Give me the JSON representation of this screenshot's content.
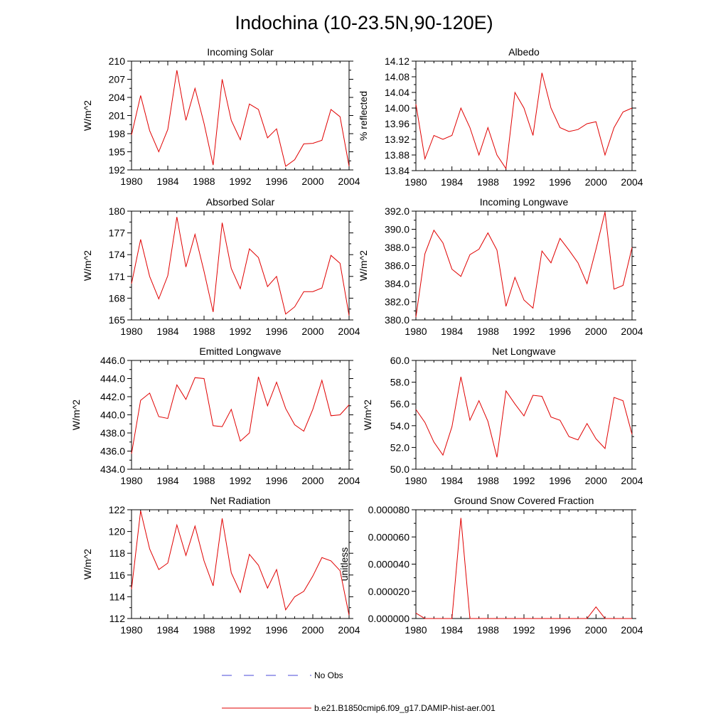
{
  "title": "Indochina (10-23.5N,90-120E)",
  "legend": {
    "placement": "bottom-center",
    "entries": [
      {
        "label": "No Obs",
        "color": "#4a4ad8",
        "style": "dashed"
      },
      {
        "label": "b.e21.B1850cmip6.f09_g17.DAMIP-hist-aer.001",
        "color": "#e00000",
        "style": "solid"
      }
    ]
  },
  "chart_data": [
    {
      "type": "line",
      "title": "Incoming Solar",
      "ylabel": "W/m^2",
      "xlim": [
        1980,
        2004
      ],
      "ylim": [
        192,
        210
      ],
      "xticks": [
        "1980",
        "1984",
        "1988",
        "1992",
        "1996",
        "2000",
        "2004"
      ],
      "yticks": [
        "192",
        "195",
        "198",
        "201",
        "204",
        "207",
        "210"
      ],
      "x": [
        1980,
        1981,
        1982,
        1983,
        1984,
        1985,
        1986,
        1987,
        1988,
        1989,
        1990,
        1991,
        1992,
        1993,
        1994,
        1995,
        1996,
        1997,
        1998,
        1999,
        2000,
        2001,
        2002,
        2003,
        2004
      ],
      "series": [
        {
          "name": "b.e21.B1850cmip6.f09_g17.DAMIP-hist-aer.001",
          "color": "#e00000",
          "values": [
            197.8,
            204.3,
            198.5,
            195.0,
            198.7,
            208.5,
            200.2,
            205.5,
            199.7,
            192.8,
            207.0,
            200.2,
            197.0,
            202.9,
            202.0,
            197.3,
            198.8,
            192.6,
            193.7,
            196.3,
            196.4,
            196.9,
            202.0,
            200.8,
            192.6
          ]
        }
      ]
    },
    {
      "type": "line",
      "title": "Albedo",
      "ylabel": "% reflected",
      "xlim": [
        1980,
        2004
      ],
      "ylim": [
        13.84,
        14.12
      ],
      "xticks": [
        "1980",
        "1984",
        "1988",
        "1992",
        "1996",
        "2000",
        "2004"
      ],
      "yticks": [
        "13.84",
        "13.88",
        "13.92",
        "13.96",
        "14.00",
        "14.04",
        "14.08",
        "14.12"
      ],
      "x": [
        1980,
        1981,
        1982,
        1983,
        1984,
        1985,
        1986,
        1987,
        1988,
        1989,
        1990,
        1991,
        1992,
        1993,
        1994,
        1995,
        1996,
        1997,
        1998,
        1999,
        2000,
        2001,
        2002,
        2003,
        2004
      ],
      "series": [
        {
          "name": "b.e21.B1850cmip6.f09_g17.DAMIP-hist-aer.001",
          "color": "#e00000",
          "values": [
            14.01,
            13.87,
            13.93,
            13.92,
            13.93,
            14.0,
            13.95,
            13.88,
            13.95,
            13.88,
            13.845,
            14.04,
            14.0,
            13.93,
            14.09,
            14.0,
            13.95,
            13.94,
            13.945,
            13.96,
            13.965,
            13.88,
            13.95,
            13.99,
            14.0
          ]
        }
      ]
    },
    {
      "type": "line",
      "title": "Absorbed Solar",
      "ylabel": "W/m^2",
      "xlim": [
        1980,
        2004
      ],
      "ylim": [
        165,
        180
      ],
      "xticks": [
        "1980",
        "1984",
        "1988",
        "1992",
        "1996",
        "2000",
        "2004"
      ],
      "yticks": [
        "165",
        "168",
        "171",
        "174",
        "177",
        "180"
      ],
      "x": [
        1980,
        1981,
        1982,
        1983,
        1984,
        1985,
        1986,
        1987,
        1988,
        1989,
        1990,
        1991,
        1992,
        1993,
        1994,
        1995,
        1996,
        1997,
        1998,
        1999,
        2000,
        2001,
        2002,
        2003,
        2004
      ],
      "series": [
        {
          "name": "b.e21.B1850cmip6.f09_g17.DAMIP-hist-aer.001",
          "color": "#e00000",
          "values": [
            170.0,
            176.1,
            171.0,
            167.9,
            171.1,
            179.2,
            172.3,
            176.8,
            171.7,
            166.1,
            178.4,
            172.1,
            169.3,
            174.8,
            173.6,
            169.6,
            171.0,
            165.8,
            166.8,
            168.9,
            168.9,
            169.4,
            173.9,
            172.8,
            165.6
          ]
        }
      ]
    },
    {
      "type": "line",
      "title": "Incoming Longwave",
      "ylabel": "W/m^2",
      "xlim": [
        1980,
        2004
      ],
      "ylim": [
        380.0,
        392.0
      ],
      "xticks": [
        "1980",
        "1984",
        "1988",
        "1992",
        "1996",
        "2000",
        "2004"
      ],
      "yticks": [
        "380.0",
        "382.0",
        "384.0",
        "386.0",
        "388.0",
        "390.0",
        "392.0"
      ],
      "x": [
        1980,
        1981,
        1982,
        1983,
        1984,
        1985,
        1986,
        1987,
        1988,
        1989,
        1990,
        1991,
        1992,
        1993,
        1994,
        1995,
        1996,
        1997,
        1998,
        1999,
        2000,
        2001,
        2002,
        2003,
        2004
      ],
      "series": [
        {
          "name": "b.e21.B1850cmip6.f09_g17.DAMIP-hist-aer.001",
          "color": "#e00000",
          "values": [
            380.3,
            387.3,
            389.9,
            388.5,
            385.6,
            384.8,
            387.2,
            387.8,
            389.6,
            387.7,
            381.5,
            384.7,
            382.2,
            381.3,
            387.6,
            386.3,
            389.0,
            387.7,
            386.3,
            384.0,
            387.8,
            391.9,
            383.4,
            383.8,
            388.0
          ]
        }
      ]
    },
    {
      "type": "line",
      "title": "Emitted Longwave",
      "ylabel": "W/m^2",
      "xlim": [
        1980,
        2004
      ],
      "ylim": [
        434.0,
        446.0
      ],
      "xticks": [
        "1980",
        "1984",
        "1988",
        "1992",
        "1996",
        "2000",
        "2004"
      ],
      "yticks": [
        "434.0",
        "436.0",
        "438.0",
        "440.0",
        "442.0",
        "444.0",
        "446.0"
      ],
      "x": [
        1980,
        1981,
        1982,
        1983,
        1984,
        1985,
        1986,
        1987,
        1988,
        1989,
        1990,
        1991,
        1992,
        1993,
        1994,
        1995,
        1996,
        1997,
        1998,
        1999,
        2000,
        2001,
        2002,
        2003,
        2004
      ],
      "series": [
        {
          "name": "b.e21.B1850cmip6.f09_g17.DAMIP-hist-aer.001",
          "color": "#e00000",
          "values": [
            435.7,
            441.6,
            442.4,
            439.8,
            439.6,
            443.3,
            441.7,
            444.1,
            444.0,
            438.8,
            438.7,
            440.6,
            437.1,
            438.0,
            444.2,
            441.0,
            443.6,
            440.7,
            438.9,
            438.2,
            440.6,
            443.8,
            439.9,
            440.0,
            441.1
          ]
        }
      ]
    },
    {
      "type": "line",
      "title": "Net Longwave",
      "ylabel": "W/m^2",
      "xlim": [
        1980,
        2004
      ],
      "ylim": [
        50.0,
        60.0
      ],
      "xticks": [
        "1980",
        "1984",
        "1988",
        "1992",
        "1996",
        "2000",
        "2004"
      ],
      "yticks": [
        "50.0",
        "52.0",
        "54.0",
        "56.0",
        "58.0",
        "60.0"
      ],
      "x": [
        1980,
        1981,
        1982,
        1983,
        1984,
        1985,
        1986,
        1987,
        1988,
        1989,
        1990,
        1991,
        1992,
        1993,
        1994,
        1995,
        1996,
        1997,
        1998,
        1999,
        2000,
        2001,
        2002,
        2003,
        2004
      ],
      "series": [
        {
          "name": "b.e21.B1850cmip6.f09_g17.DAMIP-hist-aer.001",
          "color": "#e00000",
          "values": [
            55.5,
            54.3,
            52.5,
            51.3,
            53.9,
            58.5,
            54.5,
            56.3,
            54.4,
            51.1,
            57.2,
            56.0,
            54.9,
            56.8,
            56.7,
            54.8,
            54.5,
            53.0,
            52.7,
            54.2,
            52.8,
            51.9,
            56.6,
            56.3,
            53.2
          ]
        }
      ]
    },
    {
      "type": "line",
      "title": "Net Radiation",
      "ylabel": "W/m^2",
      "xlim": [
        1980,
        2004
      ],
      "ylim": [
        112,
        122
      ],
      "xticks": [
        "1980",
        "1984",
        "1988",
        "1992",
        "1996",
        "2000",
        "2004"
      ],
      "yticks": [
        "112",
        "114",
        "116",
        "118",
        "120",
        "122"
      ],
      "x": [
        1980,
        1981,
        1982,
        1983,
        1984,
        1985,
        1986,
        1987,
        1988,
        1989,
        1990,
        1991,
        1992,
        1993,
        1994,
        1995,
        1996,
        1997,
        1998,
        1999,
        2000,
        2001,
        2002,
        2003,
        2004
      ],
      "series": [
        {
          "name": "b.e21.B1850cmip6.f09_g17.DAMIP-hist-aer.001",
          "color": "#e00000",
          "values": [
            114.7,
            121.9,
            118.4,
            116.5,
            117.1,
            120.6,
            117.8,
            120.5,
            117.3,
            115.0,
            121.2,
            116.2,
            114.4,
            117.9,
            116.9,
            114.8,
            116.5,
            112.8,
            114.0,
            114.5,
            115.9,
            117.6,
            117.3,
            116.4,
            112.3
          ]
        }
      ]
    },
    {
      "type": "line",
      "title": "Ground Snow Covered Fraction",
      "ylabel": "unitless",
      "xlim": [
        1980,
        2004
      ],
      "ylim": [
        0,
        8e-05
      ],
      "xticks": [
        "1980",
        "1984",
        "1988",
        "1992",
        "1996",
        "2000",
        "2004"
      ],
      "yticks": [
        "0.000000",
        "0.000020",
        "0.000040",
        "0.000060",
        "0.000080"
      ],
      "x": [
        1980,
        1981,
        1982,
        1983,
        1984,
        1985,
        1986,
        1987,
        1988,
        1989,
        1990,
        1991,
        1992,
        1993,
        1994,
        1995,
        1996,
        1997,
        1998,
        1999,
        2000,
        2001,
        2002,
        2003,
        2004
      ],
      "series": [
        {
          "name": "b.e21.B1850cmip6.f09_g17.DAMIP-hist-aer.001",
          "color": "#e00000",
          "values": [
            4e-06,
            0,
            0,
            0,
            0,
            7.4e-05,
            0,
            0,
            0,
            0,
            0,
            0,
            0,
            0,
            0,
            0,
            0,
            0,
            0,
            0,
            8.5e-06,
            0,
            0,
            0,
            0
          ]
        }
      ]
    }
  ]
}
